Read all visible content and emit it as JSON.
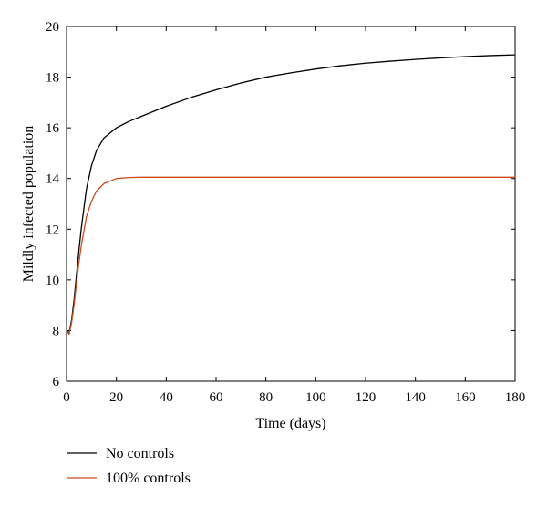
{
  "chart_data": {
    "type": "line",
    "title": "",
    "xlabel": "Time (days)",
    "ylabel": "Mildly infected population",
    "xlim": [
      0,
      180
    ],
    "ylim": [
      6,
      20
    ],
    "xticks": [
      0,
      20,
      40,
      60,
      80,
      100,
      120,
      140,
      160,
      180
    ],
    "yticks": [
      6,
      8,
      10,
      12,
      14,
      16,
      18,
      20
    ],
    "grid": false,
    "legend_position": "bottom-left, below plot",
    "series": [
      {
        "name": "No controls",
        "color": "#000000",
        "x": [
          0,
          1,
          2,
          3,
          4,
          5,
          6,
          8,
          10,
          12,
          15,
          20,
          25,
          30,
          40,
          50,
          60,
          70,
          80,
          90,
          100,
          110,
          120,
          130,
          140,
          150,
          160,
          170,
          180
        ],
        "y": [
          8.0,
          7.9,
          8.4,
          9.2,
          10.2,
          11.2,
          12.1,
          13.6,
          14.5,
          15.1,
          15.6,
          16.0,
          16.25,
          16.45,
          16.85,
          17.2,
          17.5,
          17.77,
          18.0,
          18.17,
          18.32,
          18.45,
          18.55,
          18.63,
          18.7,
          18.76,
          18.81,
          18.85,
          18.88
        ]
      },
      {
        "name": "100% controls",
        "color": "#cc4a1a",
        "x": [
          0,
          1,
          2,
          3,
          4,
          5,
          6,
          8,
          10,
          12,
          15,
          20,
          25,
          30,
          35,
          40,
          60,
          80,
          100,
          120,
          140,
          160,
          180
        ],
        "y": [
          8.0,
          7.85,
          8.3,
          9.0,
          9.9,
          10.7,
          11.4,
          12.5,
          13.1,
          13.5,
          13.8,
          14.0,
          14.04,
          14.05,
          14.05,
          14.05,
          14.05,
          14.05,
          14.05,
          14.05,
          14.05,
          14.05,
          14.05
        ]
      }
    ]
  }
}
